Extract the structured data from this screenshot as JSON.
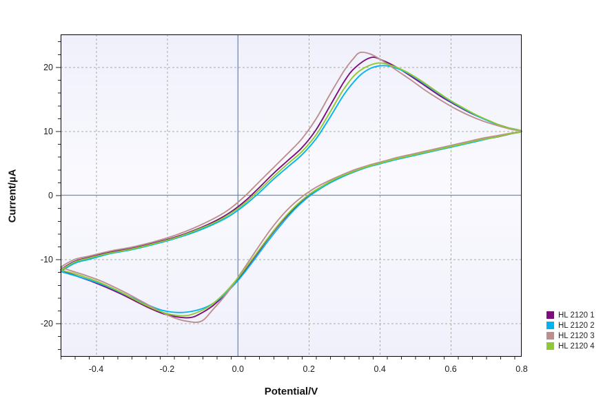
{
  "chart_data": {
    "type": "line",
    "title": "",
    "xlabel": "Potential/V",
    "ylabel": "Current/µA",
    "xlim": [
      -0.5,
      0.8
    ],
    "ylim": [
      -25.2,
      25.1
    ],
    "grid": "on",
    "legend_position": "right-bottom",
    "x_ticks": {
      "major": [
        -0.4,
        -0.2,
        0.0,
        0.2,
        0.4,
        0.6,
        0.8
      ],
      "labels": [
        "-0.4",
        "-0.2",
        "0.0",
        "0.2",
        "0.4",
        "0.6",
        "0.8"
      ],
      "minor_step": 0.04
    },
    "y_ticks": {
      "major": [
        -20,
        -10,
        0,
        10,
        20
      ],
      "labels": [
        "-20",
        "-10",
        "0",
        "10",
        "20"
      ],
      "minor_step": 2
    },
    "colors": {
      "grid": "#A9A9A9",
      "zero_lines": "#5B8FD8",
      "frame": "#000000",
      "plot_bg_edge": "#EFF0FB",
      "plot_bg_mid": "#FAFAFE",
      "tick_label": "#1B1B1B",
      "axis_title": "#111111"
    },
    "series": [
      {
        "name": "HL 2120 1",
        "color": "#7C0E7C",
        "points": [
          [
            -0.5,
            -11.6
          ],
          [
            -0.46,
            -10.3
          ],
          [
            -0.42,
            -9.7
          ],
          [
            -0.36,
            -8.9
          ],
          [
            -0.3,
            -8.3
          ],
          [
            -0.24,
            -7.5
          ],
          [
            -0.18,
            -6.6
          ],
          [
            -0.12,
            -5.4
          ],
          [
            -0.06,
            -3.9
          ],
          [
            -0.02,
            -2.6
          ],
          [
            0.02,
            -0.9
          ],
          [
            0.06,
            1.2
          ],
          [
            0.1,
            3.4
          ],
          [
            0.14,
            5.4
          ],
          [
            0.18,
            7.4
          ],
          [
            0.22,
            10.2
          ],
          [
            0.26,
            14.0
          ],
          [
            0.3,
            17.8
          ],
          [
            0.33,
            19.9
          ],
          [
            0.375,
            21.5
          ],
          [
            0.41,
            21.0
          ],
          [
            0.45,
            19.9
          ],
          [
            0.49,
            18.5
          ],
          [
            0.53,
            17.0
          ],
          [
            0.57,
            15.5
          ],
          [
            0.61,
            14.2
          ],
          [
            0.65,
            13.0
          ],
          [
            0.69,
            12.0
          ],
          [
            0.73,
            11.1
          ],
          [
            0.77,
            10.4
          ],
          [
            0.8,
            10.0
          ],
          [
            0.77,
            9.6
          ],
          [
            0.73,
            9.1
          ],
          [
            0.69,
            8.7
          ],
          [
            0.65,
            8.2
          ],
          [
            0.61,
            7.7
          ],
          [
            0.57,
            7.2
          ],
          [
            0.53,
            6.7
          ],
          [
            0.49,
            6.2
          ],
          [
            0.45,
            5.7
          ],
          [
            0.41,
            5.1
          ],
          [
            0.37,
            4.5
          ],
          [
            0.33,
            3.7
          ],
          [
            0.29,
            2.8
          ],
          [
            0.25,
            1.7
          ],
          [
            0.21,
            0.4
          ],
          [
            0.17,
            -1.4
          ],
          [
            0.13,
            -3.7
          ],
          [
            0.09,
            -6.4
          ],
          [
            0.05,
            -9.4
          ],
          [
            0.01,
            -12.4
          ],
          [
            -0.03,
            -15.1
          ],
          [
            -0.07,
            -17.2
          ],
          [
            -0.11,
            -18.6
          ],
          [
            -0.135,
            -19.1
          ],
          [
            -0.17,
            -19.0
          ],
          [
            -0.21,
            -18.5
          ],
          [
            -0.25,
            -17.6
          ],
          [
            -0.29,
            -16.5
          ],
          [
            -0.33,
            -15.4
          ],
          [
            -0.37,
            -14.4
          ],
          [
            -0.41,
            -13.5
          ],
          [
            -0.45,
            -12.7
          ],
          [
            -0.48,
            -12.1
          ],
          [
            -0.5,
            -11.6
          ]
        ]
      },
      {
        "name": "HL 2120 2",
        "color": "#00B5EF",
        "points": [
          [
            -0.5,
            -11.9
          ],
          [
            -0.46,
            -10.6
          ],
          [
            -0.42,
            -10.0
          ],
          [
            -0.36,
            -9.1
          ],
          [
            -0.3,
            -8.5
          ],
          [
            -0.24,
            -7.7
          ],
          [
            -0.18,
            -6.8
          ],
          [
            -0.12,
            -5.7
          ],
          [
            -0.06,
            -4.3
          ],
          [
            -0.02,
            -3.1
          ],
          [
            0.02,
            -1.5
          ],
          [
            0.06,
            0.4
          ],
          [
            0.1,
            2.5
          ],
          [
            0.14,
            4.4
          ],
          [
            0.18,
            6.3
          ],
          [
            0.22,
            8.8
          ],
          [
            0.26,
            12.2
          ],
          [
            0.3,
            15.8
          ],
          [
            0.34,
            18.5
          ],
          [
            0.37,
            19.7
          ],
          [
            0.4,
            20.2
          ],
          [
            0.43,
            20.1
          ],
          [
            0.47,
            19.3
          ],
          [
            0.51,
            18.0
          ],
          [
            0.55,
            16.5
          ],
          [
            0.59,
            15.0
          ],
          [
            0.63,
            13.7
          ],
          [
            0.67,
            12.5
          ],
          [
            0.71,
            11.5
          ],
          [
            0.75,
            10.7
          ],
          [
            0.8,
            10.0
          ],
          [
            0.76,
            9.5
          ],
          [
            0.72,
            9.0
          ],
          [
            0.68,
            8.5
          ],
          [
            0.64,
            8.0
          ],
          [
            0.6,
            7.5
          ],
          [
            0.56,
            7.0
          ],
          [
            0.52,
            6.5
          ],
          [
            0.48,
            6.0
          ],
          [
            0.44,
            5.5
          ],
          [
            0.4,
            4.9
          ],
          [
            0.36,
            4.3
          ],
          [
            0.32,
            3.5
          ],
          [
            0.28,
            2.5
          ],
          [
            0.24,
            1.3
          ],
          [
            0.2,
            -0.2
          ],
          [
            0.16,
            -2.2
          ],
          [
            0.12,
            -4.7
          ],
          [
            0.08,
            -7.5
          ],
          [
            0.04,
            -10.5
          ],
          [
            0.0,
            -13.3
          ],
          [
            -0.04,
            -15.6
          ],
          [
            -0.08,
            -17.2
          ],
          [
            -0.12,
            -18.0
          ],
          [
            -0.165,
            -18.3
          ],
          [
            -0.21,
            -18.0
          ],
          [
            -0.25,
            -17.2
          ],
          [
            -0.29,
            -16.2
          ],
          [
            -0.33,
            -15.2
          ],
          [
            -0.37,
            -14.2
          ],
          [
            -0.41,
            -13.4
          ],
          [
            -0.45,
            -12.7
          ],
          [
            -0.5,
            -11.9
          ]
        ]
      },
      {
        "name": "HL 2120 3",
        "color": "#BC8F8F",
        "points": [
          [
            -0.5,
            -11.2
          ],
          [
            -0.46,
            -10.0
          ],
          [
            -0.42,
            -9.5
          ],
          [
            -0.36,
            -8.7
          ],
          [
            -0.3,
            -8.1
          ],
          [
            -0.24,
            -7.3
          ],
          [
            -0.18,
            -6.3
          ],
          [
            -0.12,
            -5.0
          ],
          [
            -0.06,
            -3.4
          ],
          [
            -0.02,
            -2.0
          ],
          [
            0.02,
            -0.1
          ],
          [
            0.06,
            2.1
          ],
          [
            0.1,
            4.3
          ],
          [
            0.14,
            6.5
          ],
          [
            0.18,
            8.8
          ],
          [
            0.22,
            11.9
          ],
          [
            0.26,
            15.8
          ],
          [
            0.3,
            19.5
          ],
          [
            0.325,
            21.3
          ],
          [
            0.345,
            22.3
          ],
          [
            0.375,
            22.0
          ],
          [
            0.41,
            20.9
          ],
          [
            0.45,
            19.4
          ],
          [
            0.49,
            17.9
          ],
          [
            0.53,
            16.3
          ],
          [
            0.57,
            14.9
          ],
          [
            0.61,
            13.6
          ],
          [
            0.65,
            12.5
          ],
          [
            0.69,
            11.6
          ],
          [
            0.73,
            10.9
          ],
          [
            0.77,
            10.3
          ],
          [
            0.8,
            10.0
          ],
          [
            0.77,
            9.7
          ],
          [
            0.73,
            9.3
          ],
          [
            0.69,
            8.9
          ],
          [
            0.65,
            8.4
          ],
          [
            0.61,
            7.9
          ],
          [
            0.57,
            7.4
          ],
          [
            0.53,
            6.9
          ],
          [
            0.49,
            6.4
          ],
          [
            0.45,
            5.9
          ],
          [
            0.41,
            5.3
          ],
          [
            0.37,
            4.7
          ],
          [
            0.33,
            4.0
          ],
          [
            0.29,
            3.1
          ],
          [
            0.25,
            2.1
          ],
          [
            0.21,
            0.9
          ],
          [
            0.17,
            -0.7
          ],
          [
            0.13,
            -2.8
          ],
          [
            0.09,
            -5.5
          ],
          [
            0.05,
            -8.7
          ],
          [
            0.01,
            -12.0
          ],
          [
            -0.03,
            -15.2
          ],
          [
            -0.07,
            -17.8
          ],
          [
            -0.105,
            -19.7
          ],
          [
            -0.15,
            -19.6
          ],
          [
            -0.19,
            -18.9
          ],
          [
            -0.23,
            -17.8
          ],
          [
            -0.27,
            -16.6
          ],
          [
            -0.31,
            -15.4
          ],
          [
            -0.35,
            -14.3
          ],
          [
            -0.39,
            -13.3
          ],
          [
            -0.43,
            -12.5
          ],
          [
            -0.47,
            -11.8
          ],
          [
            -0.5,
            -11.2
          ]
        ]
      },
      {
        "name": "HL 2120 4",
        "color": "#8FC832",
        "points": [
          [
            -0.5,
            -11.7
          ],
          [
            -0.46,
            -10.4
          ],
          [
            -0.42,
            -9.8
          ],
          [
            -0.36,
            -9.0
          ],
          [
            -0.3,
            -8.4
          ],
          [
            -0.24,
            -7.6
          ],
          [
            -0.18,
            -6.7
          ],
          [
            -0.12,
            -5.5
          ],
          [
            -0.06,
            -4.1
          ],
          [
            -0.02,
            -2.8
          ],
          [
            0.02,
            -1.2
          ],
          [
            0.06,
            0.8
          ],
          [
            0.1,
            2.9
          ],
          [
            0.14,
            4.9
          ],
          [
            0.18,
            6.8
          ],
          [
            0.22,
            9.4
          ],
          [
            0.26,
            13.0
          ],
          [
            0.3,
            16.7
          ],
          [
            0.34,
            19.3
          ],
          [
            0.39,
            20.6
          ],
          [
            0.43,
            20.3
          ],
          [
            0.47,
            19.4
          ],
          [
            0.51,
            18.1
          ],
          [
            0.55,
            16.6
          ],
          [
            0.59,
            15.1
          ],
          [
            0.63,
            13.8
          ],
          [
            0.67,
            12.6
          ],
          [
            0.71,
            11.6
          ],
          [
            0.75,
            10.7
          ],
          [
            0.8,
            10.0
          ],
          [
            0.76,
            9.5
          ],
          [
            0.72,
            9.0
          ],
          [
            0.68,
            8.6
          ],
          [
            0.64,
            8.1
          ],
          [
            0.6,
            7.6
          ],
          [
            0.56,
            7.1
          ],
          [
            0.52,
            6.6
          ],
          [
            0.48,
            6.1
          ],
          [
            0.44,
            5.6
          ],
          [
            0.4,
            5.0
          ],
          [
            0.36,
            4.4
          ],
          [
            0.32,
            3.6
          ],
          [
            0.28,
            2.7
          ],
          [
            0.24,
            1.5
          ],
          [
            0.2,
            0.1
          ],
          [
            0.16,
            -1.8
          ],
          [
            0.12,
            -4.2
          ],
          [
            0.08,
            -7.0
          ],
          [
            0.04,
            -10.0
          ],
          [
            0.0,
            -12.9
          ],
          [
            -0.04,
            -15.4
          ],
          [
            -0.08,
            -17.3
          ],
          [
            -0.12,
            -18.4
          ],
          [
            -0.15,
            -18.8
          ],
          [
            -0.19,
            -18.6
          ],
          [
            -0.23,
            -17.9
          ],
          [
            -0.27,
            -16.9
          ],
          [
            -0.31,
            -15.7
          ],
          [
            -0.35,
            -14.6
          ],
          [
            -0.39,
            -13.6
          ],
          [
            -0.43,
            -12.8
          ],
          [
            -0.47,
            -12.1
          ],
          [
            -0.5,
            -11.7
          ]
        ]
      }
    ]
  }
}
